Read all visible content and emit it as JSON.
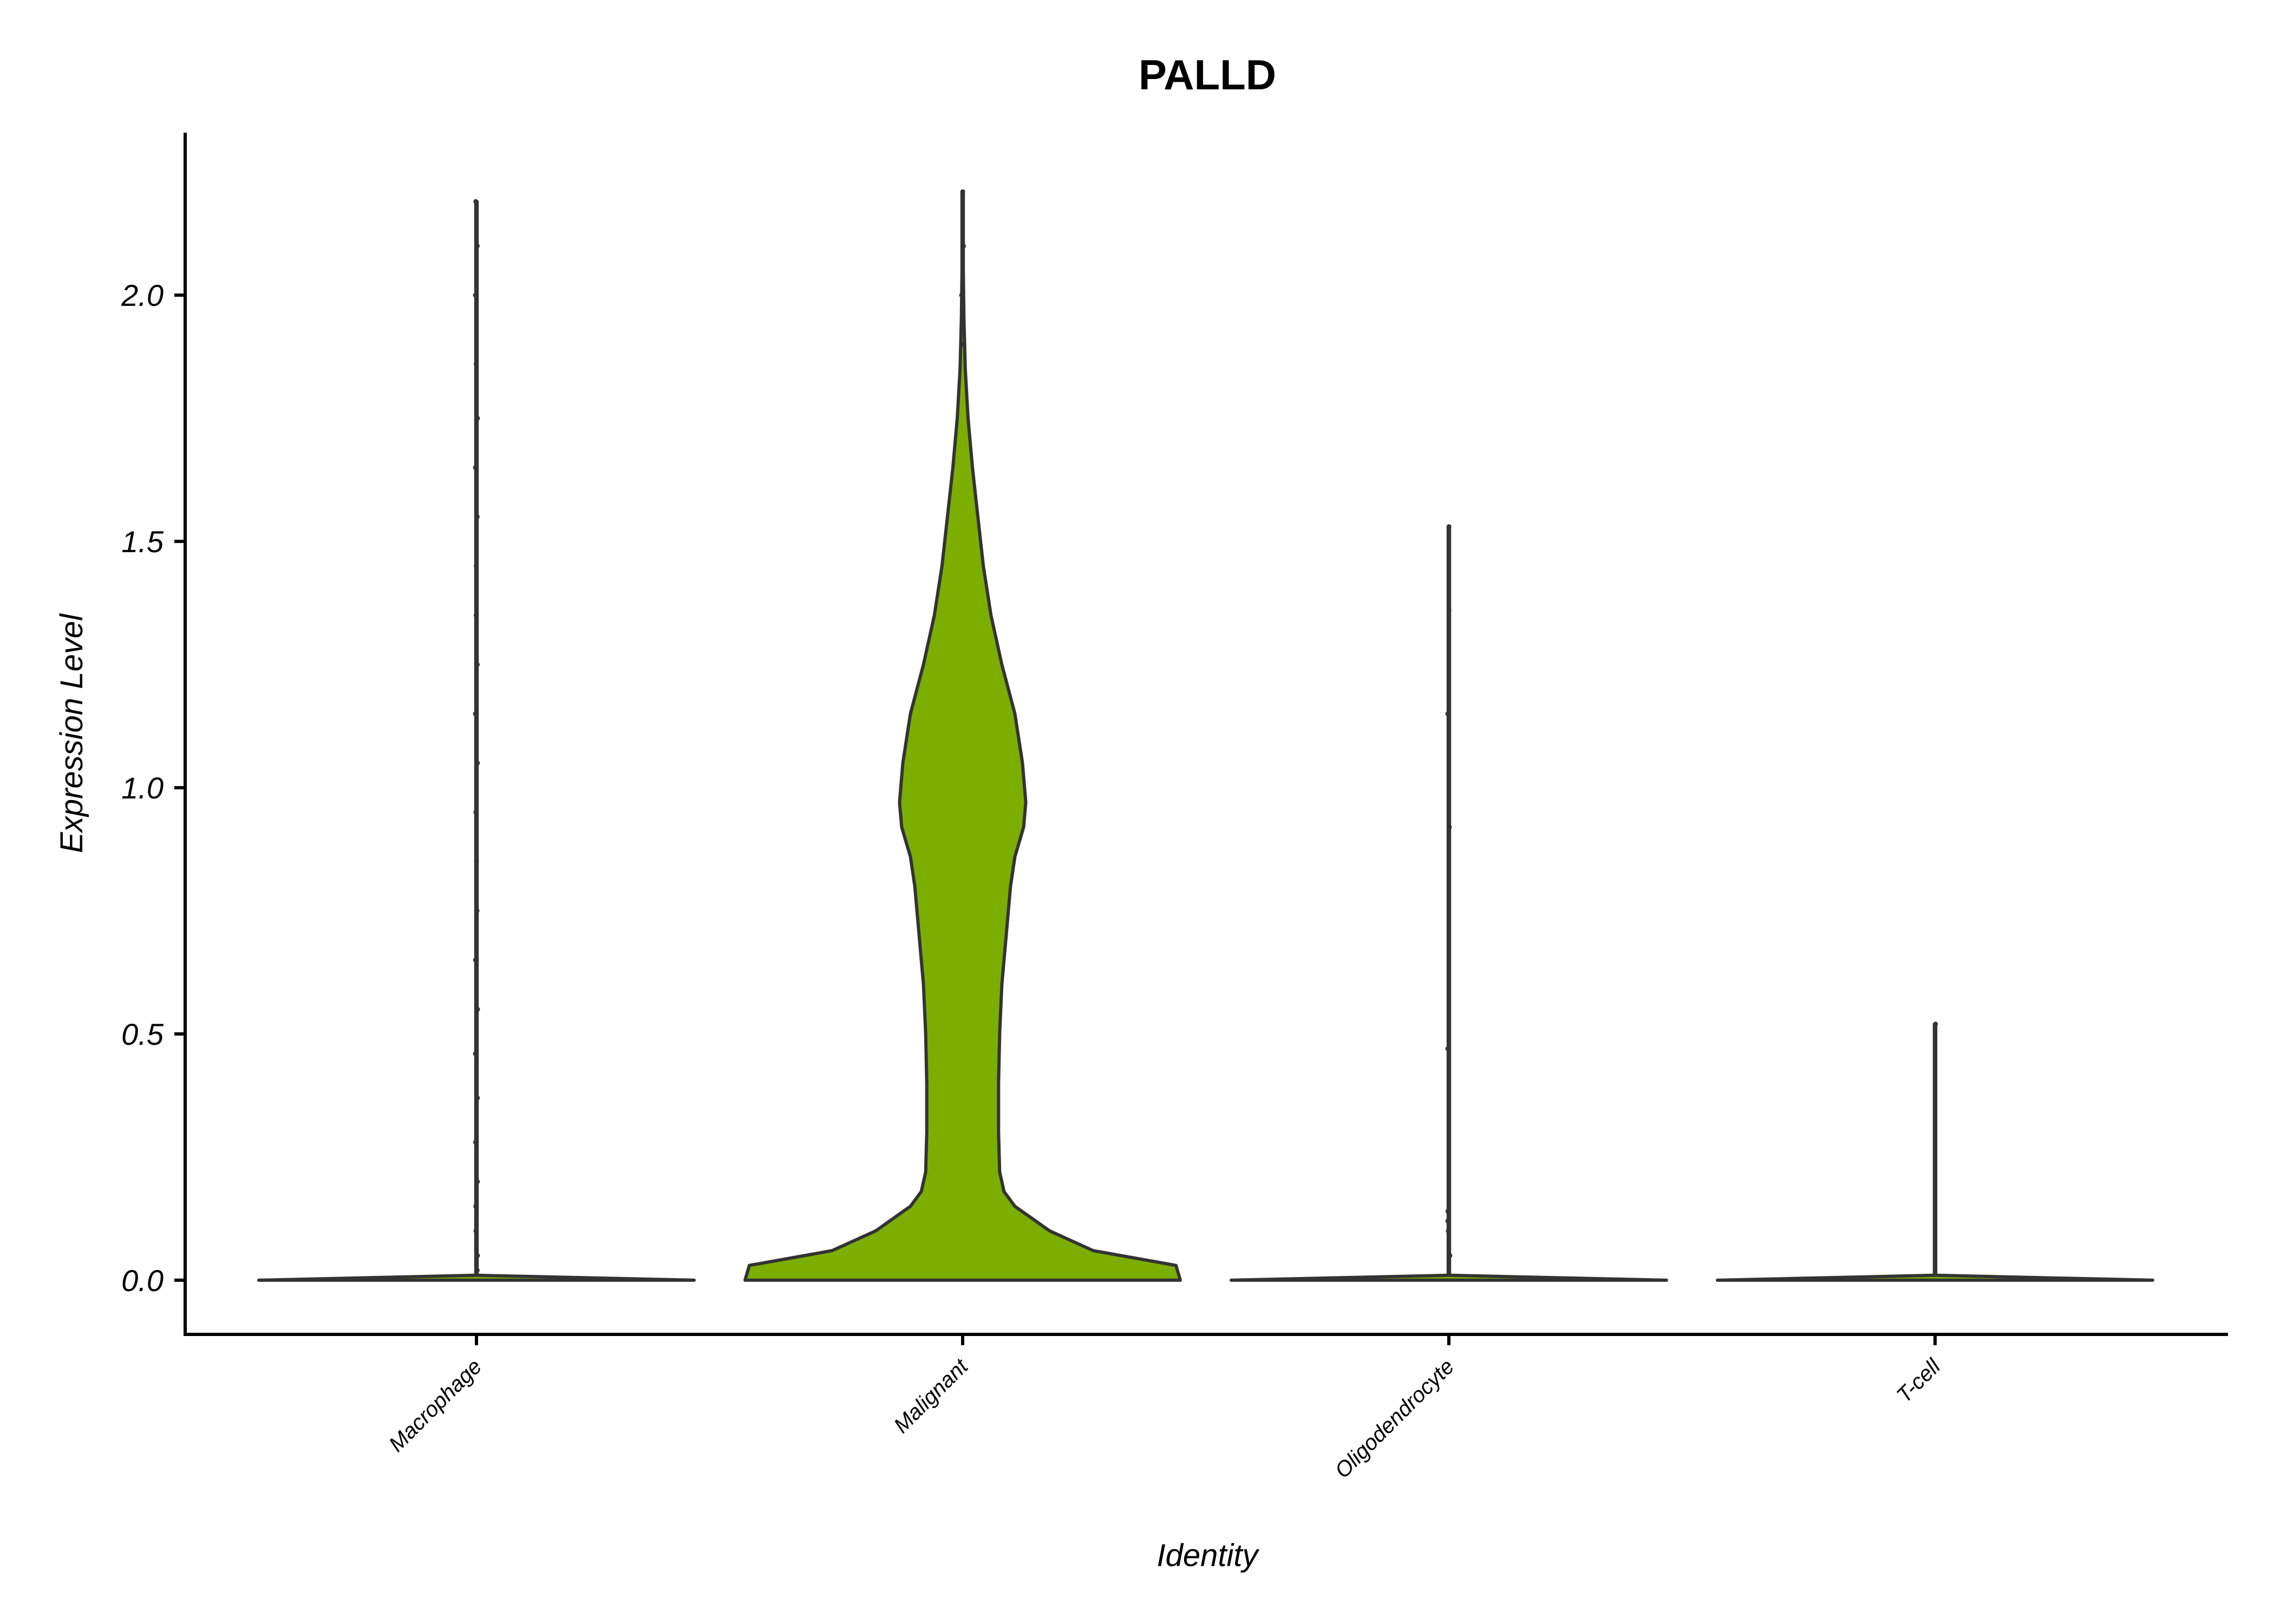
{
  "chart_data": {
    "type": "violin",
    "title": "PALLD",
    "xlabel": "Identity",
    "ylabel": "Expression Level",
    "ylim": [
      -0.11,
      2.33
    ],
    "yticks": [
      "0.0",
      "0.5",
      "1.0",
      "1.5",
      "2.0"
    ],
    "ytick_values": [
      0,
      0.5,
      1.0,
      1.5,
      2.0
    ],
    "categories": [
      "Macrophage",
      "Malignant",
      "Oligodendrocyte",
      "T-cell"
    ],
    "series": [
      {
        "category": "Macrophage",
        "fill": "#7CAE00",
        "max": 2.19,
        "density": [
          [
            0,
            1
          ],
          [
            0.004,
            0.6
          ],
          [
            0.01,
            0.003
          ],
          [
            2.19,
            0.003
          ]
        ],
        "points": [
          0.02,
          0.05,
          0.1,
          0.15,
          0.2,
          0.28,
          0.37,
          0.46,
          0.55,
          0.65,
          0.75,
          0.85,
          0.95,
          1.05,
          1.15,
          1.25,
          1.35,
          1.45,
          1.55,
          1.65,
          1.75,
          1.86,
          2.0,
          2.1,
          2.19
        ]
      },
      {
        "category": "Malignant",
        "fill": "#7CAE00",
        "max": 2.21,
        "density": [
          [
            0,
            1
          ],
          [
            0.03,
            0.98
          ],
          [
            0.06,
            0.6
          ],
          [
            0.1,
            0.4
          ],
          [
            0.15,
            0.24
          ],
          [
            0.18,
            0.19
          ],
          [
            0.22,
            0.17
          ],
          [
            0.3,
            0.165
          ],
          [
            0.4,
            0.165
          ],
          [
            0.5,
            0.17
          ],
          [
            0.6,
            0.18
          ],
          [
            0.7,
            0.2
          ],
          [
            0.8,
            0.22
          ],
          [
            0.86,
            0.24
          ],
          [
            0.92,
            0.28
          ],
          [
            0.97,
            0.29
          ],
          [
            1.05,
            0.275
          ],
          [
            1.15,
            0.24
          ],
          [
            1.25,
            0.18
          ],
          [
            1.35,
            0.13
          ],
          [
            1.45,
            0.095
          ],
          [
            1.55,
            0.07
          ],
          [
            1.65,
            0.045
          ],
          [
            1.75,
            0.025
          ],
          [
            1.85,
            0.012
          ],
          [
            1.95,
            0.006
          ],
          [
            2.05,
            0.003
          ],
          [
            2.21,
            0.003
          ]
        ],
        "points": [
          1.9,
          2.0,
          2.1,
          2.21
        ]
      },
      {
        "category": "Oligodendrocyte",
        "fill": "#7CAE00",
        "max": 1.53,
        "density": [
          [
            0,
            1
          ],
          [
            0.004,
            0.6
          ],
          [
            0.01,
            0.003
          ],
          [
            1.53,
            0.003
          ]
        ],
        "points": [
          0.05,
          0.1,
          0.12,
          0.14,
          0.47,
          0.92,
          1.15,
          1.36,
          1.53
        ]
      },
      {
        "category": "T-cell",
        "fill": "#7CAE00",
        "max": 0.52,
        "density": [
          [
            0,
            1
          ],
          [
            0.004,
            0.6
          ],
          [
            0.01,
            0.003
          ],
          [
            0.52,
            0.003
          ]
        ],
        "points": [
          0.52
        ]
      }
    ]
  }
}
